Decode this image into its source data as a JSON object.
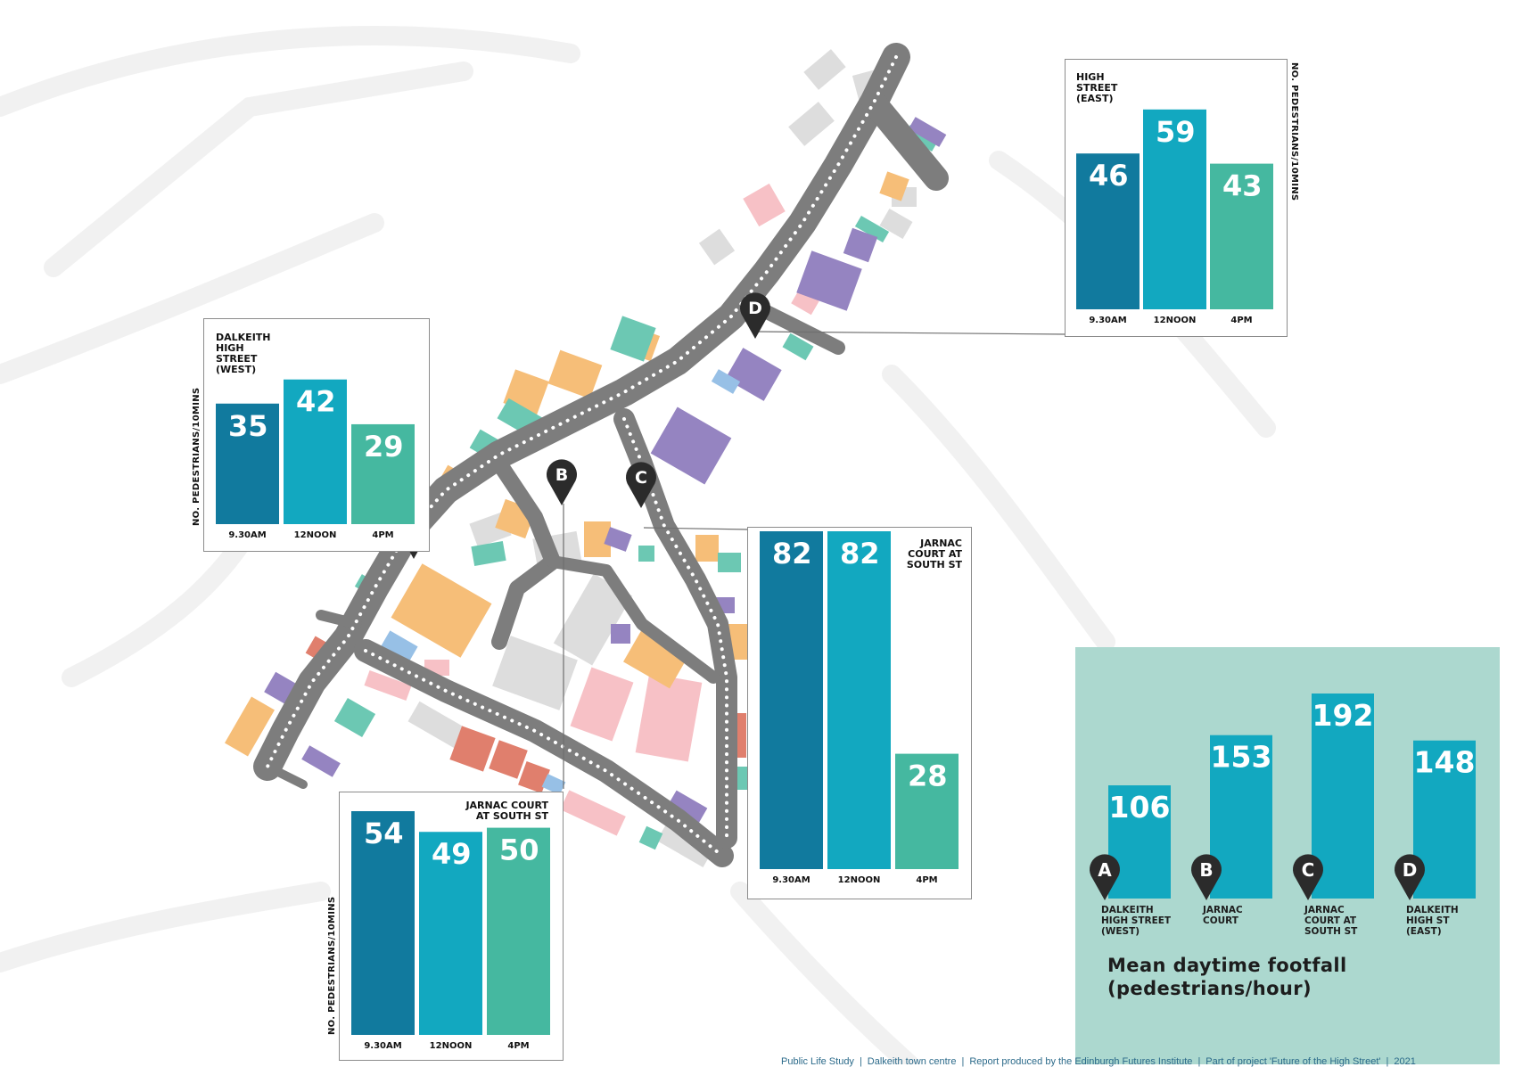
{
  "colors": {
    "time_930": "#117a9e",
    "time_noon": "#12a8c0",
    "time_4pm": "#45b8a0",
    "road": "#7d7d7d",
    "summary_bg": "#acd8cf",
    "pin": "#2b2b2b",
    "footer": "#2b6a8a"
  },
  "y_axis_label": "NO. PEDESTRIANS/10MINS",
  "chart_data": [
    {
      "type": "bar",
      "id": "A",
      "title": "DALKEITH\nHIGH\nSTREET\n(WEST)",
      "categories": [
        "9.30AM",
        "12NOON",
        "4PM"
      ],
      "values": [
        35,
        42,
        29
      ],
      "ylabel": "NO. PEDESTRIANS/10MINS"
    },
    {
      "type": "bar",
      "id": "B",
      "title": "JARNAC COURT\nAT SOUTH ST",
      "categories": [
        "9.30AM",
        "12NOON",
        "4PM"
      ],
      "values": [
        54,
        49,
        50
      ],
      "ylabel": "NO. PEDESTRIANS/10MINS"
    },
    {
      "type": "bar",
      "id": "C",
      "title": "JARNAC\nCOURT AT\nSOUTH ST",
      "categories": [
        "9.30AM",
        "12NOON",
        "4PM"
      ],
      "values": [
        82,
        82,
        28
      ],
      "ylabel": ""
    },
    {
      "type": "bar",
      "id": "D",
      "title": "HIGH\nSTREET\n(EAST)",
      "categories": [
        "9.30AM",
        "12NOON",
        "4PM"
      ],
      "values": [
        46,
        59,
        43
      ],
      "ylabel": "NO. PEDESTRIANS/10MINS"
    },
    {
      "type": "bar",
      "id": "summary",
      "title": "Mean daytime footfall\n(pedestrians/hour)",
      "categories": [
        "DALKEITH\nHIGH STREET\n(WEST)",
        "JARNAC\nCOURT",
        "JARNAC\nCOURT AT\nSOUTH ST",
        "DALKEITH\nHIGH ST\n(EAST)"
      ],
      "markers": [
        "A",
        "B",
        "C",
        "D"
      ],
      "values": [
        106,
        153,
        192,
        148
      ]
    }
  ],
  "map_markers": [
    "A",
    "B",
    "C",
    "D"
  ],
  "footer": [
    "Public Life Study",
    "Dalkeith town centre",
    "Report produced by the Edinburgh Futures Institute",
    "Part of project 'Future of the High Street'",
    "2021"
  ]
}
